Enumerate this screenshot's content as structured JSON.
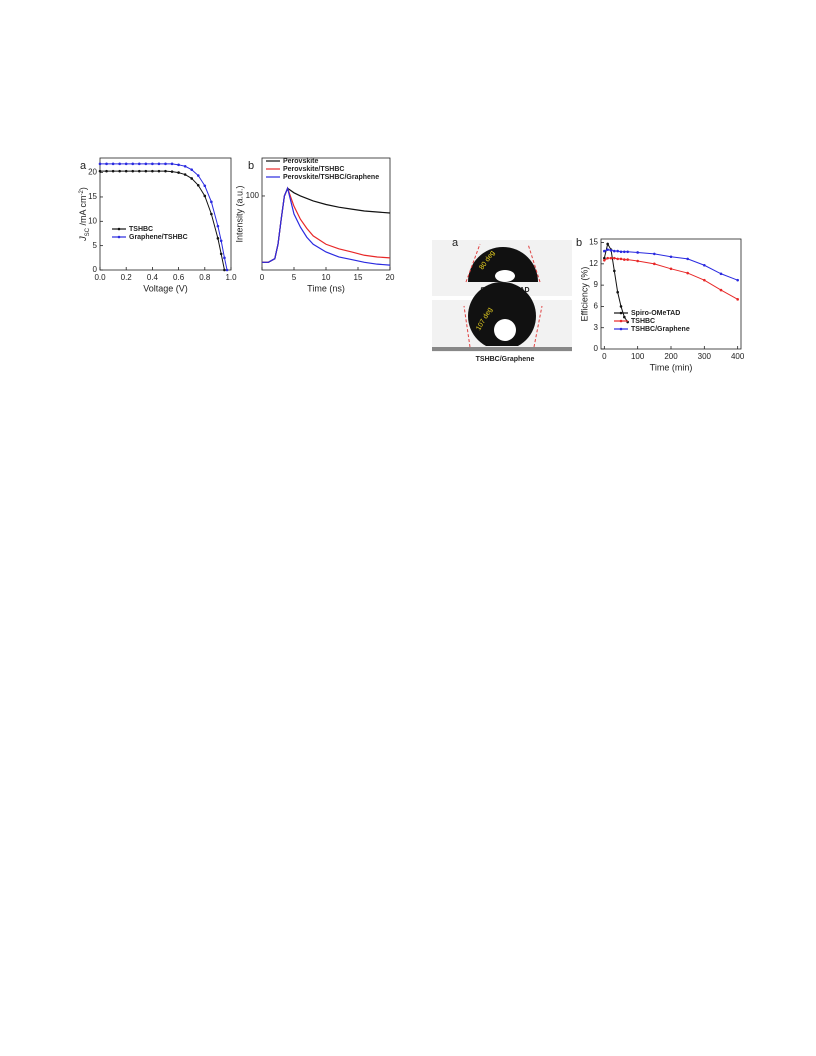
{
  "chart_data": [
    {
      "type": "line",
      "panel": "a",
      "xlabel": "Voltage (V)",
      "ylabel": {
        "main": "J",
        "sub": "SC",
        "unit": " /mA cm",
        "sup": "-2",
        "close": ")"
      },
      "x": [
        0,
        0.05,
        0.1,
        0.15,
        0.2,
        0.25,
        0.3,
        0.35,
        0.4,
        0.45,
        0.5,
        0.55,
        0.6,
        0.65,
        0.7,
        0.75,
        0.8,
        0.85,
        0.9,
        0.925,
        0.95,
        0.97
      ],
      "series": [
        {
          "name": "TSHBC",
          "color": "#111111",
          "values": [
            20.3,
            20.3,
            20.3,
            20.3,
            20.3,
            20.3,
            20.3,
            20.3,
            20.3,
            20.3,
            20.3,
            20.2,
            20.0,
            19.6,
            18.8,
            17.4,
            15.2,
            11.5,
            6.5,
            3.3,
            0,
            null
          ]
        },
        {
          "name": "Graphene/TSHBC",
          "color": "#2a2ae0",
          "values": [
            21.8,
            21.8,
            21.8,
            21.8,
            21.8,
            21.8,
            21.8,
            21.8,
            21.8,
            21.8,
            21.8,
            21.8,
            21.6,
            21.3,
            20.6,
            19.4,
            17.3,
            14.0,
            9.0,
            6.0,
            2.5,
            0
          ]
        }
      ],
      "xlim": [
        0,
        1.0
      ],
      "xticks": [
        {
          "value": 0,
          "label": "0.0"
        },
        {
          "value": 0.2,
          "label": "0.2"
        },
        {
          "value": 0.4,
          "label": "0.4"
        },
        {
          "value": 0.6,
          "label": "0.6"
        },
        {
          "value": 0.8,
          "label": "0.8"
        },
        {
          "value": 1.0,
          "label": "1.0"
        }
      ],
      "ylim": [
        0,
        23
      ],
      "yticks": [
        0,
        5,
        10,
        15,
        20
      ],
      "markers": true,
      "legend_loc": "center left"
    },
    {
      "type": "line",
      "panel": "b",
      "xlabel": "Time (ns)",
      "ylabel": "Intensity (a.u.)",
      "yscale": "log",
      "x": [
        0,
        1,
        2,
        2.5,
        3,
        3.5,
        4,
        5,
        6,
        7,
        8,
        10,
        12,
        14,
        16,
        18,
        20
      ],
      "series": [
        {
          "name": "Perovskite",
          "color": "#111111",
          "values": [
            44,
            44,
            46,
            55,
            75,
            100,
            110,
            104,
            100,
            97,
            94,
            90,
            87,
            85,
            83,
            82,
            81
          ]
        },
        {
          "name": "Perovskite/TSHBC",
          "color": "#e82828",
          "values": [
            44,
            44,
            46,
            55,
            75,
            100,
            110,
            88,
            75,
            67,
            61,
            55,
            52,
            50,
            48,
            47,
            46.5
          ]
        },
        {
          "name": "Perovskite/TSHBC/Graphene",
          "color": "#2a2ae0",
          "values": [
            44,
            44,
            46,
            55,
            75,
            100,
            110,
            80,
            68,
            60,
            55,
            50,
            47,
            45.5,
            44,
            43,
            42.5
          ]
        }
      ],
      "xlim": [
        0,
        20
      ],
      "xticks": [
        0,
        5,
        10,
        15,
        20
      ],
      "ylim": [
        40,
        160
      ],
      "yticks": [
        100
      ],
      "markers": false,
      "legend_loc": "upper left"
    },
    {
      "type": "line",
      "panel": "b",
      "xlabel": "Time (min)",
      "ylabel": "Efficiency (%)",
      "x": [
        0,
        10,
        20,
        30,
        40,
        50,
        60,
        70,
        100,
        150,
        200,
        250,
        300,
        350,
        400
      ],
      "series": [
        {
          "name": "Spiro-OMeTAD",
          "color": "#111111",
          "values": [
            12.8,
            14.8,
            14,
            11,
            8,
            6,
            4.5,
            3.8,
            null,
            null,
            null,
            null,
            null,
            null,
            null
          ]
        },
        {
          "name": "TSHBC",
          "color": "#e82828",
          "values": [
            12.5,
            12.8,
            12.8,
            12.8,
            12.7,
            12.7,
            12.6,
            12.6,
            12.4,
            12.0,
            11.3,
            10.7,
            9.7,
            8.3,
            7.0
          ]
        },
        {
          "name": "TSHBC/Graphene",
          "color": "#2a2ae0",
          "values": [
            13.8,
            14.0,
            13.9,
            13.8,
            13.8,
            13.7,
            13.7,
            13.7,
            13.6,
            13.4,
            13.0,
            12.7,
            11.8,
            10.6,
            9.7
          ]
        }
      ],
      "xlim": [
        -10,
        410
      ],
      "xticks": [
        0,
        100,
        200,
        300,
        400
      ],
      "ylim": [
        0,
        15.5
      ],
      "yticks": [
        0,
        3,
        6,
        9,
        12,
        15
      ],
      "markers": true,
      "legend_loc": "center right"
    }
  ],
  "contact_angle_panel": {
    "panel": "a",
    "images": [
      {
        "label": "Spiro-OMeTAD",
        "angle": "80 deg"
      },
      {
        "label": "TSHBC/Graphene",
        "angle": "107 deg"
      }
    ]
  }
}
